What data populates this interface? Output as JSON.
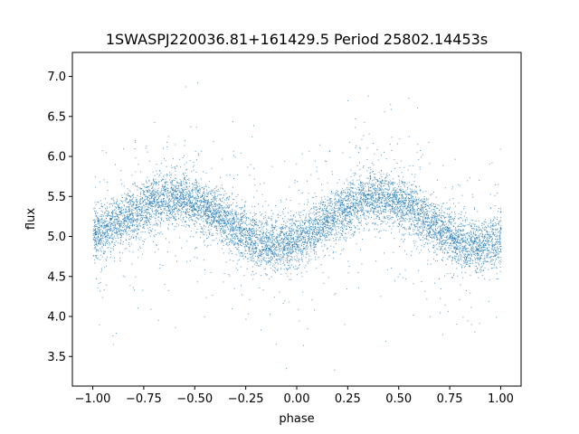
{
  "chart_data": {
    "type": "scatter",
    "title": "1SWASPJ220036.81+161429.5 Period 25802.14453s",
    "xlabel": "phase",
    "ylabel": "flux",
    "xlim": [
      -1.1,
      1.1
    ],
    "ylim": [
      3.13,
      7.3
    ],
    "x_ticks": [
      -1.0,
      -0.75,
      -0.5,
      -0.25,
      0.0,
      0.25,
      0.5,
      0.75,
      1.0
    ],
    "x_tick_labels": [
      "−1.00",
      "−0.75",
      "−0.50",
      "−0.25",
      "0.00",
      "0.25",
      "0.50",
      "0.75",
      "1.00"
    ],
    "y_ticks": [
      3.5,
      4.0,
      4.5,
      5.0,
      5.5,
      6.0,
      6.5,
      7.0
    ],
    "y_tick_labels": [
      "3.5",
      "4.0",
      "4.5",
      "5.0",
      "5.5",
      "6.0",
      "6.5",
      "7.0"
    ],
    "point_color": "#1f77b4",
    "grid": false,
    "legend": false,
    "series": [
      {
        "marker": "dot",
        "x": [
          -1.0,
          -0.9,
          -0.8,
          -0.7,
          -0.6,
          -0.5,
          -0.4,
          -0.3,
          -0.2,
          -0.1,
          0.0,
          0.1,
          0.2,
          0.3,
          0.4,
          0.5,
          0.6,
          0.7,
          0.8,
          0.9,
          1.0
        ],
        "y": [
          5.0,
          5.15,
          5.3,
          5.45,
          5.5,
          5.42,
          5.28,
          5.1,
          4.93,
          4.88,
          4.95,
          5.12,
          5.3,
          5.45,
          5.5,
          5.42,
          5.28,
          5.1,
          4.93,
          4.88,
          4.95
        ]
      }
    ]
  }
}
